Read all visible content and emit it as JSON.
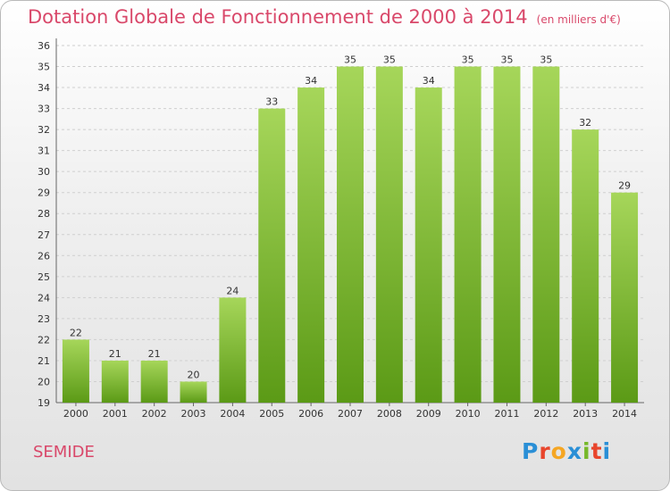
{
  "title": "Dotation Globale de Fonctionnement de 2000 à 2014",
  "unit": "(en milliers d'€)",
  "city": "SEMIDE",
  "brand": {
    "letters": [
      "P",
      "r",
      "o",
      "x",
      "i",
      "t",
      "i"
    ],
    "colors": [
      "#2a8fd6",
      "#e8452c",
      "#f5a623",
      "#2a8fd6",
      "#76b82a",
      "#e8452c",
      "#2a8fd6"
    ]
  },
  "colors": {
    "bar_top": "#a6d65a",
    "bar_bottom": "#5b9a16",
    "title": "#d9486a",
    "grid": "#cfcfcf"
  },
  "chart_data": {
    "type": "bar",
    "categories": [
      "2000",
      "2001",
      "2002",
      "2003",
      "2004",
      "2005",
      "2006",
      "2007",
      "2008",
      "2009",
      "2010",
      "2011",
      "2012",
      "2013",
      "2014"
    ],
    "values": [
      22,
      21,
      21,
      20,
      24,
      33,
      34,
      35,
      35,
      34,
      35,
      35,
      35,
      32,
      29
    ],
    "ylim": [
      19,
      36
    ],
    "yticks": [
      19,
      20,
      21,
      22,
      23,
      24,
      25,
      26,
      27,
      28,
      29,
      30,
      31,
      32,
      33,
      34,
      35,
      36
    ],
    "grid": true,
    "data_labels": true
  }
}
